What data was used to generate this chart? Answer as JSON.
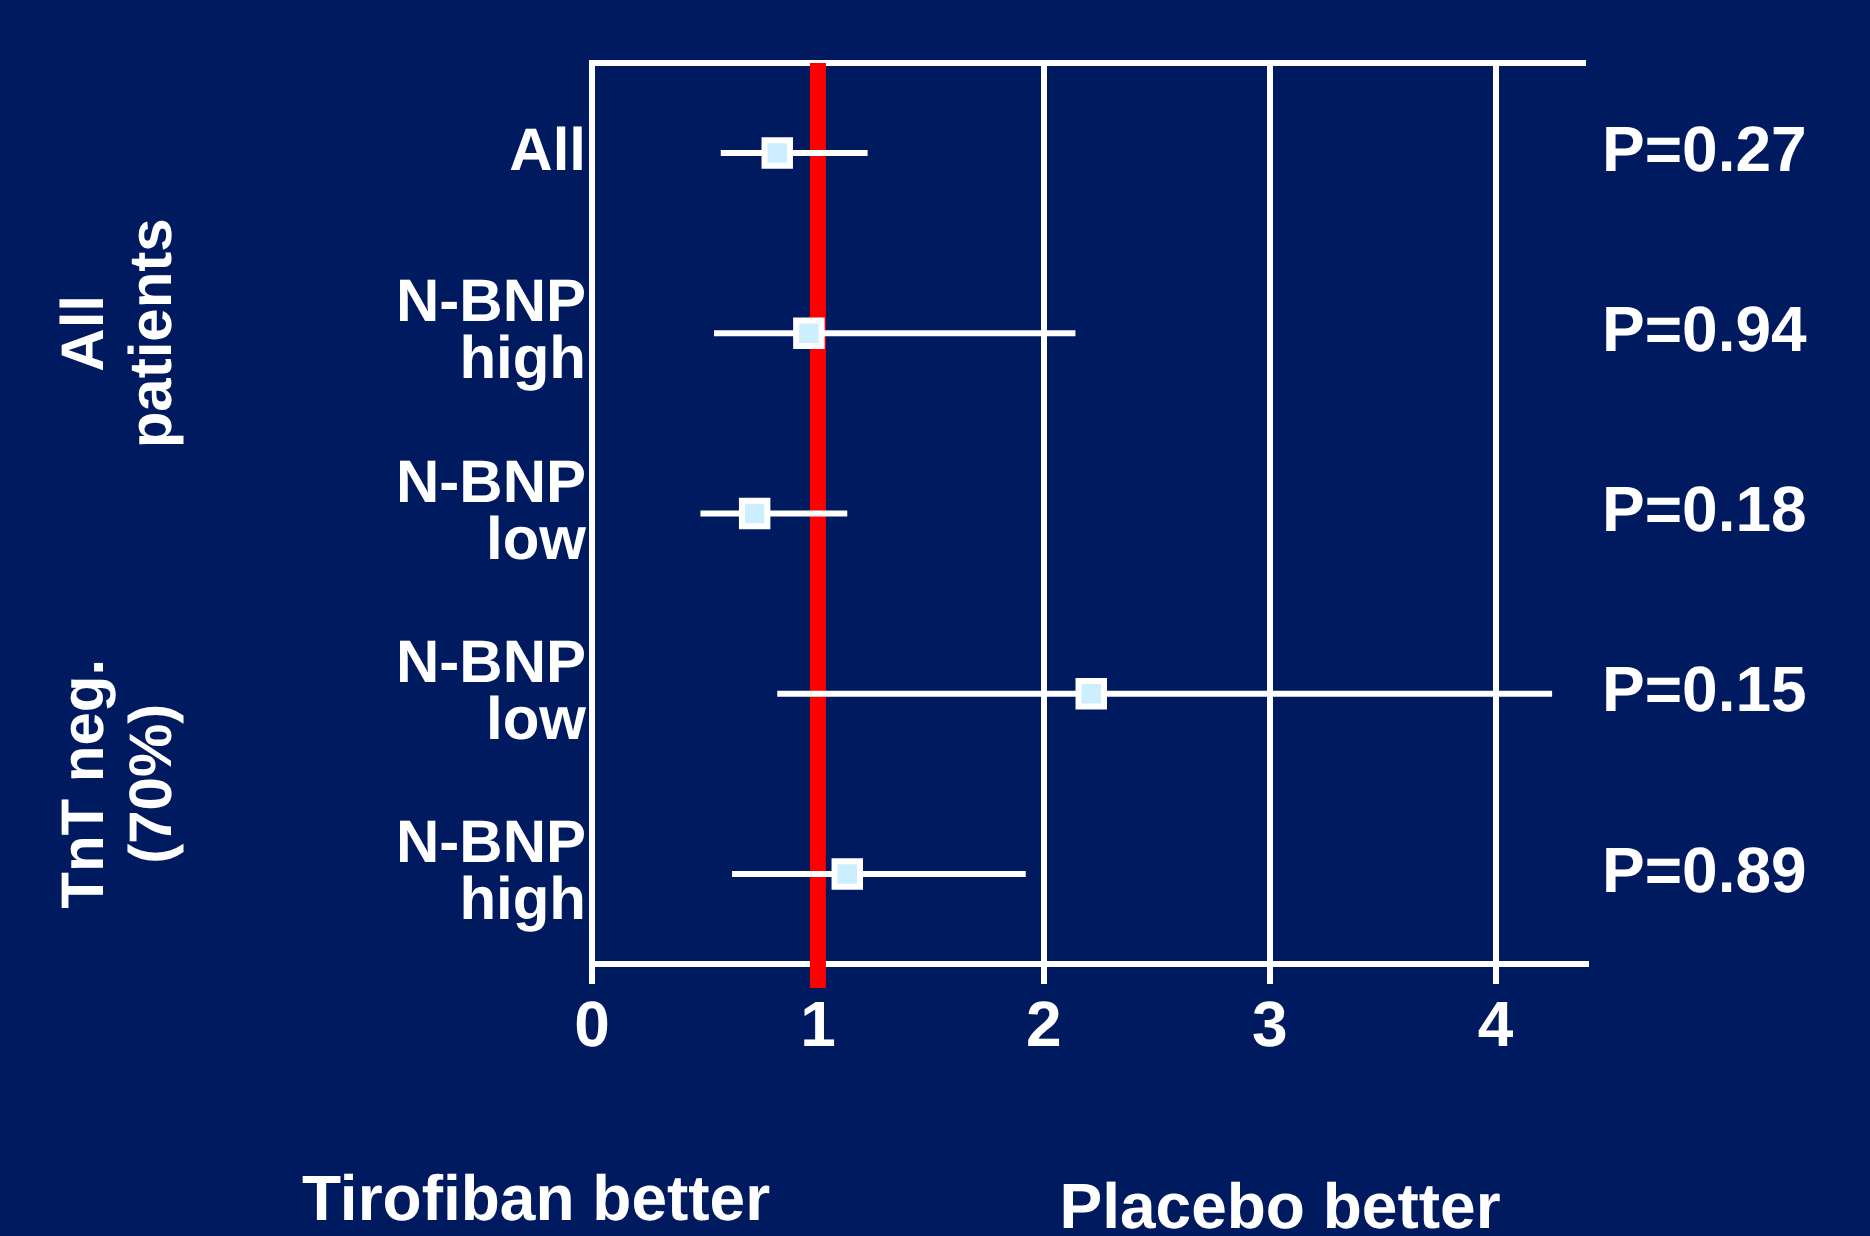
{
  "chart_data": {
    "type": "scatter",
    "orientation": "horizontal",
    "categories": [
      "All",
      "N-BNP high",
      "N-BNP low",
      "N-BNP low",
      "N-BNP high"
    ],
    "values": [
      0.82,
      0.96,
      0.72,
      2.21,
      1.13
    ],
    "errors": [
      [
        0.57,
        1.22
      ],
      [
        0.54,
        2.14
      ],
      [
        0.48,
        1.13
      ],
      [
        0.82,
        4.25
      ],
      [
        0.62,
        1.92
      ]
    ],
    "color": "#cceeff",
    "marker": "square",
    "xlim": [
      0,
      4.4
    ],
    "xticks": [
      0,
      1,
      2,
      3,
      4
    ],
    "grid": "x",
    "legend": false,
    "ref_lines": [
      {
        "axis": "x",
        "value": 1,
        "color": "#ff0000"
      }
    ],
    "annotations": [
      "P=0.27",
      "P=0.94",
      "P=0.18",
      "P=0.15",
      "P=0.89",
      "All patients",
      "TnT neg. (70%)",
      "Tirofiban better",
      "Placebo better"
    ]
  }
}
